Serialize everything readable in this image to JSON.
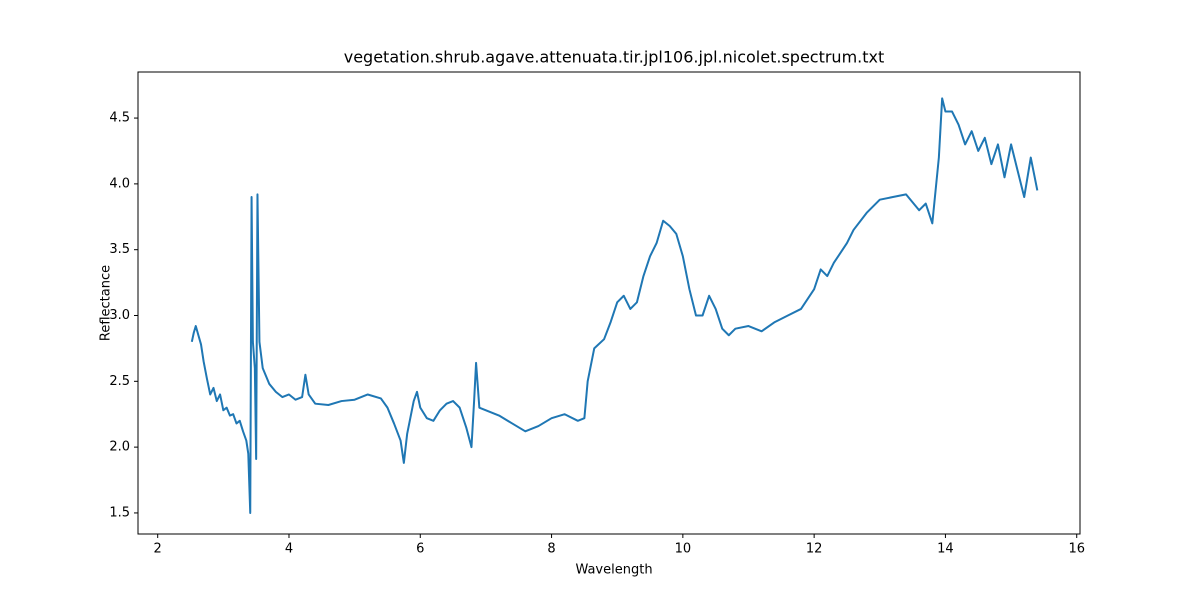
{
  "chart_data": {
    "type": "line",
    "title": "vegetation.shrub.agave.attenuata.tir.jpl106.jpl.nicolet.spectrum.txt",
    "xlabel": "Wavelength",
    "ylabel": "Reflectance",
    "xlim": [
      1.7,
      16.05
    ],
    "ylim": [
      1.34,
      4.85
    ],
    "xticks": [
      2,
      4,
      6,
      8,
      10,
      12,
      14,
      16
    ],
    "yticks": [
      {
        "value": 1.5,
        "label": "1.5"
      },
      {
        "value": 2.0,
        "label": "2.0"
      },
      {
        "value": 2.5,
        "label": "2.5"
      },
      {
        "value": 3.0,
        "label": "3.0"
      },
      {
        "value": 3.5,
        "label": "3.5"
      },
      {
        "value": 4.0,
        "label": "4.0"
      },
      {
        "value": 4.5,
        "label": "4.5"
      }
    ],
    "grid": false,
    "series": [
      {
        "color": "#1f77b4",
        "x": [
          2.52,
          2.55,
          2.58,
          2.62,
          2.66,
          2.7,
          2.75,
          2.8,
          2.85,
          2.9,
          2.95,
          3.0,
          3.05,
          3.1,
          3.15,
          3.2,
          3.25,
          3.3,
          3.35,
          3.38,
          3.41,
          3.43,
          3.45,
          3.48,
          3.5,
          3.52,
          3.55,
          3.6,
          3.7,
          3.8,
          3.9,
          4.0,
          4.1,
          4.2,
          4.25,
          4.3,
          4.4,
          4.6,
          4.8,
          5.0,
          5.2,
          5.4,
          5.5,
          5.6,
          5.7,
          5.75,
          5.8,
          5.9,
          5.95,
          6.0,
          6.1,
          6.2,
          6.3,
          6.4,
          6.5,
          6.6,
          6.7,
          6.78,
          6.82,
          6.85,
          6.9,
          7.0,
          7.2,
          7.4,
          7.6,
          7.8,
          8.0,
          8.2,
          8.4,
          8.5,
          8.55,
          8.65,
          8.8,
          8.9,
          9.0,
          9.1,
          9.2,
          9.3,
          9.4,
          9.5,
          9.6,
          9.7,
          9.8,
          9.9,
          10.0,
          10.1,
          10.2,
          10.3,
          10.4,
          10.5,
          10.6,
          10.7,
          10.8,
          11.0,
          11.2,
          11.4,
          11.6,
          11.8,
          12.0,
          12.1,
          12.2,
          12.3,
          12.5,
          12.6,
          12.8,
          13.0,
          13.2,
          13.4,
          13.6,
          13.7,
          13.8,
          13.85,
          13.9,
          13.95,
          14.0,
          14.1,
          14.2,
          14.3,
          14.4,
          14.5,
          14.6,
          14.7,
          14.8,
          14.9,
          15.0,
          15.1,
          15.2,
          15.3,
          15.4
        ],
        "values": [
          2.8,
          2.87,
          2.92,
          2.85,
          2.78,
          2.65,
          2.52,
          2.4,
          2.45,
          2.35,
          2.4,
          2.28,
          2.3,
          2.24,
          2.25,
          2.18,
          2.2,
          2.12,
          2.05,
          1.95,
          1.5,
          3.9,
          2.8,
          2.6,
          1.91,
          3.92,
          2.8,
          2.6,
          2.48,
          2.42,
          2.38,
          2.4,
          2.36,
          2.38,
          2.55,
          2.4,
          2.33,
          2.32,
          2.35,
          2.36,
          2.4,
          2.37,
          2.3,
          2.18,
          2.05,
          1.88,
          2.1,
          2.35,
          2.42,
          2.3,
          2.22,
          2.2,
          2.28,
          2.33,
          2.35,
          2.3,
          2.15,
          2.0,
          2.35,
          2.64,
          2.3,
          2.28,
          2.24,
          2.18,
          2.12,
          2.16,
          2.22,
          2.25,
          2.2,
          2.22,
          2.5,
          2.75,
          2.82,
          2.95,
          3.1,
          3.15,
          3.05,
          3.1,
          3.3,
          3.45,
          3.55,
          3.72,
          3.68,
          3.62,
          3.45,
          3.2,
          3.0,
          3.0,
          3.15,
          3.05,
          2.9,
          2.85,
          2.9,
          2.92,
          2.88,
          2.95,
          3.0,
          3.05,
          3.2,
          3.35,
          3.3,
          3.4,
          3.55,
          3.65,
          3.78,
          3.88,
          3.9,
          3.92,
          3.8,
          3.85,
          3.7,
          3.95,
          4.2,
          4.65,
          4.55,
          4.55,
          4.45,
          4.3,
          4.4,
          4.25,
          4.35,
          4.15,
          4.3,
          4.05,
          4.3,
          4.1,
          3.9,
          4.2,
          3.95
        ]
      }
    ]
  }
}
